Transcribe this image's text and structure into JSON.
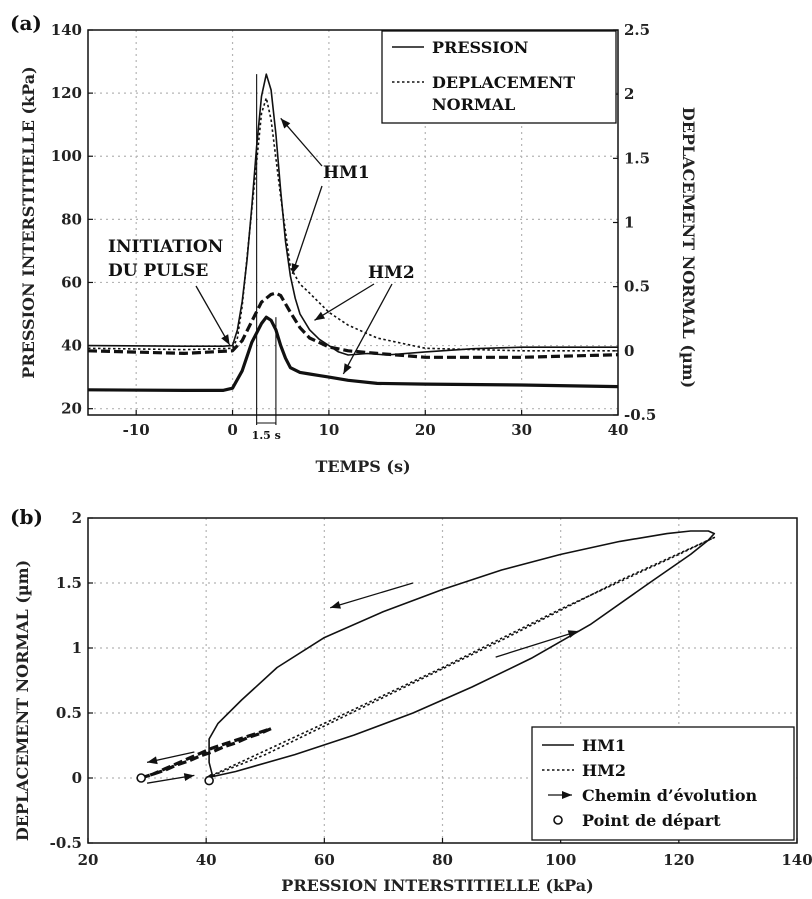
{
  "chart_data": [
    {
      "panel": "(a)",
      "type": "line",
      "xlabel": "TEMPS (s)",
      "ylabel": "PRESSION INTERSTITIELLE (kPa)",
      "y2label": "DEPLACEMENT NORMAL (µm)",
      "xlim": [
        -15,
        40
      ],
      "ylim": [
        18,
        140
      ],
      "y2lim": [
        -0.5,
        2.5
      ],
      "xticks": [
        -10,
        0,
        10,
        20,
        30,
        40
      ],
      "yticks": [
        20,
        40,
        60,
        80,
        100,
        120,
        140
      ],
      "y2ticks": [
        -0.5,
        0,
        0.5,
        1,
        1.5,
        2,
        2.5
      ],
      "y2ticklabels": [
        "-0.5",
        "0",
        "0.5",
        "1",
        "1.5",
        "2",
        "2.5"
      ],
      "grid": true,
      "legend_position": "top-right",
      "legend": [
        {
          "label": "PRESSION",
          "style": "solid"
        },
        {
          "label": "DEPLACEMENT NORMAL",
          "label_lines": [
            "DEPLACEMENT",
            "NORMAL"
          ],
          "style": "dotted"
        }
      ],
      "series": [
        {
          "test": "HM1",
          "quantity": "pressure",
          "axis": "left",
          "style": "solid",
          "x": [
            -15,
            -5,
            -1,
            0,
            0.5,
            1,
            1.5,
            2,
            2.5,
            3,
            3.5,
            4,
            4.5,
            5,
            5.5,
            6,
            6.5,
            7,
            8,
            9,
            10,
            11,
            12,
            14,
            16,
            20,
            25,
            30,
            35,
            40
          ],
          "y": [
            40,
            39.8,
            39.8,
            40,
            45,
            54,
            67,
            84,
            103,
            119,
            126,
            121,
            107,
            89,
            73,
            62,
            55,
            50,
            45,
            42,
            40,
            38,
            37,
            37.5,
            37,
            38,
            39,
            39.5,
            39.5,
            39.5
          ]
        },
        {
          "test": "HM1",
          "quantity": "normal_displacement",
          "axis": "right",
          "style": "dotted",
          "x": [
            -15,
            -5,
            0,
            0.5,
            1,
            2,
            3,
            3.5,
            4,
            5,
            6,
            7,
            8,
            10,
            12,
            15,
            20,
            30,
            40
          ],
          "y": [
            0.02,
            0.01,
            0.02,
            0.1,
            0.35,
            1.1,
            1.85,
            1.97,
            1.8,
            1.2,
            0.65,
            0.52,
            0.45,
            0.3,
            0.2,
            0.1,
            0.02,
            0,
            0
          ]
        },
        {
          "test": "HM2",
          "quantity": "pressure",
          "axis": "left",
          "style": "thick-solid",
          "x": [
            -15,
            -5,
            -1,
            0,
            1,
            2,
            3,
            3.5,
            4,
            4.5,
            5,
            5.5,
            6,
            7,
            8,
            9,
            10,
            12,
            15,
            20,
            30,
            40
          ],
          "y": [
            26,
            25.8,
            25.8,
            26.5,
            32,
            41,
            47,
            49,
            48,
            45,
            40,
            36,
            33,
            31.5,
            31,
            30.5,
            30,
            29,
            28,
            27.8,
            27.5,
            27
          ]
        },
        {
          "test": "HM2",
          "quantity": "normal_displacement",
          "axis": "right",
          "style": "thick-dashed",
          "x": [
            -15,
            -5,
            0,
            1,
            2,
            3,
            4,
            4.5,
            5,
            6,
            7,
            8,
            10,
            12,
            15,
            20,
            30,
            40
          ],
          "y": [
            0,
            -0.02,
            0,
            0.08,
            0.23,
            0.38,
            0.44,
            0.45,
            0.43,
            0.3,
            0.18,
            0.1,
            0.03,
            0,
            -0.02,
            -0.05,
            -0.05,
            -0.03
          ]
        }
      ],
      "annotations": [
        {
          "label": "HM1"
        },
        {
          "label": "HM2"
        },
        {
          "label": "INITIATION DU PULSE",
          "label_lines": [
            "INITIATION",
            "DU PULSE"
          ]
        },
        {
          "label": "1.5 s"
        }
      ]
    },
    {
      "panel": "(b)",
      "type": "line",
      "xlabel": "PRESSION INTERSTITIELLE (kPa)",
      "ylabel": "DEPLACEMENT NORMAL (µm)",
      "xlim": [
        20,
        140
      ],
      "ylim": [
        -0.5,
        2
      ],
      "xticks": [
        20,
        40,
        60,
        80,
        100,
        120,
        140
      ],
      "yticks": [
        -0.5,
        0,
        0.5,
        1,
        1.5,
        2
      ],
      "yticklabels": [
        "-0.5",
        "0",
        "0.5",
        "1",
        "1.5",
        "2"
      ],
      "grid": true,
      "legend_position": "bottom-right",
      "legend": [
        {
          "label": "HM1",
          "style": "solid"
        },
        {
          "label": "HM2",
          "style": "dotted"
        },
        {
          "label": "Chemin d’évolution",
          "style": "arrow"
        },
        {
          "label": "Point de départ",
          "style": "circle-marker"
        }
      ],
      "series": [
        {
          "test": "HM1",
          "style": "solid",
          "x": [
            40,
            45,
            55,
            65,
            75,
            85,
            95,
            105,
            115,
            122,
            125,
            126,
            125,
            122,
            118,
            110,
            100,
            90,
            80,
            70,
            60,
            52,
            46,
            42,
            40.5,
            40.5,
            41,
            40
          ],
          "y": [
            0,
            0.05,
            0.18,
            0.33,
            0.5,
            0.7,
            0.92,
            1.18,
            1.5,
            1.72,
            1.83,
            1.88,
            1.9,
            1.9,
            1.88,
            1.82,
            1.72,
            1.6,
            1.45,
            1.28,
            1.08,
            0.85,
            0.6,
            0.42,
            0.3,
            0.12,
            0.03,
            0
          ]
        },
        {
          "test": "HM2",
          "style": "dotted",
          "x": [
            40,
            60,
            80,
            100,
            120,
            126,
            110,
            90,
            70,
            50,
            40
          ],
          "y": [
            0,
            0.42,
            0.85,
            1.3,
            1.72,
            1.85,
            1.52,
            1.06,
            0.62,
            0.18,
            0
          ]
        },
        {
          "test": "HM2",
          "style": "thick-dashed",
          "x": [
            29,
            31,
            33,
            35,
            37,
            39,
            41,
            43,
            45,
            47,
            49,
            51,
            49,
            47,
            45,
            43,
            41,
            39,
            37,
            35,
            33,
            31,
            29
          ],
          "y": [
            0,
            0.03,
            0.06,
            0.1,
            0.13,
            0.17,
            0.2,
            0.24,
            0.27,
            0.31,
            0.34,
            0.38,
            0.35,
            0.32,
            0.29,
            0.26,
            0.23,
            0.19,
            0.15,
            0.11,
            0.07,
            0.03,
            0
          ]
        }
      ],
      "start_points": [
        {
          "x": 29,
          "y": 0
        },
        {
          "x": 40.5,
          "y": -0.02
        }
      ]
    }
  ]
}
